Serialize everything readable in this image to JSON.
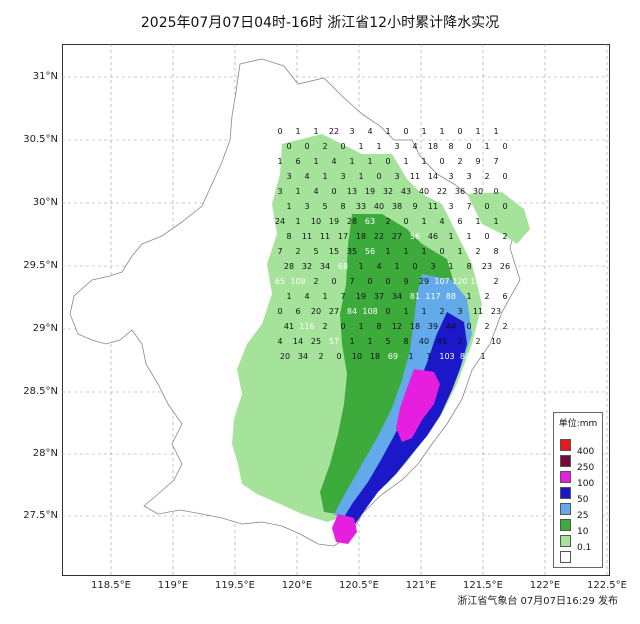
{
  "title": "2025年07月07日04时-16时 浙江省12小时累计降水实况",
  "footer": "浙江省气象台 07月07日16:29 发布",
  "lat_labels": [
    "31°N",
    "30.5°N",
    "30°N",
    "29.5°N",
    "29°N",
    "28.5°N",
    "28°N",
    "27.5°N"
  ],
  "lon_labels": [
    "118.5°E",
    "119°E",
    "119.5°E",
    "120°E",
    "120.5°E",
    "121°E",
    "121.5°E",
    "122°E",
    "122.5°E"
  ],
  "legend": {
    "title": "单位:mm",
    "items": [
      {
        "label": "400",
        "color": "#e8191a"
      },
      {
        "label": "250",
        "color": "#7a0a3c"
      },
      {
        "label": "100",
        "color": "#e51ee0"
      },
      {
        "label": "50",
        "color": "#1a18c8"
      },
      {
        "label": "25",
        "color": "#62aaea"
      },
      {
        "label": "10",
        "color": "#3cab3c"
      },
      {
        "label": "0.1",
        "color": "#a6e39a"
      },
      {
        "label": "",
        "color": "#ffffff"
      }
    ]
  },
  "station_values": [
    "0",
    "1",
    "1",
    "22",
    "3",
    "4",
    "1",
    "0",
    "1",
    "1",
    "0",
    "1",
    "1",
    "0",
    "0",
    "2",
    "0",
    "1",
    "1",
    "3",
    "4",
    "18",
    "8",
    "0",
    "1",
    "0",
    "1",
    "6",
    "1",
    "4",
    "1",
    "1",
    "0",
    "1",
    "1",
    "0",
    "2",
    "9",
    "7",
    "3",
    "4",
    "1",
    "3",
    "1",
    "0",
    "3",
    "11",
    "14",
    "3",
    "3",
    "2",
    "0",
    "3",
    "1",
    "4",
    "0",
    "13",
    "19",
    "32",
    "43",
    "40",
    "22",
    "36",
    "30",
    "0",
    "1",
    "3",
    "5",
    "8",
    "33",
    "40",
    "38",
    "9",
    "11",
    "3",
    "7",
    "0",
    "0",
    "24",
    "1",
    "10",
    "19",
    "28",
    "63",
    "2",
    "0",
    "1",
    "4",
    "6",
    "1",
    "1",
    "8",
    "11",
    "11",
    "17",
    "18",
    "22",
    "27",
    "56",
    "46",
    "1",
    "1",
    "0",
    "2",
    "7",
    "2",
    "5",
    "15",
    "35",
    "56",
    "1",
    "1",
    "1",
    "0",
    "1",
    "2",
    "8",
    "28",
    "32",
    "34",
    "68",
    "1",
    "4",
    "1",
    "0",
    "3",
    "1",
    "8",
    "23",
    "26",
    "65",
    "109",
    "2",
    "0",
    "7",
    "0",
    "0",
    "9",
    "29",
    "107",
    "120",
    "104",
    "2",
    "1",
    "4",
    "1",
    "7",
    "19",
    "37",
    "34",
    "81",
    "117",
    "88",
    "1",
    "2",
    "6",
    "0",
    "6",
    "20",
    "27",
    "84",
    "108",
    "0",
    "1",
    "1",
    "2",
    "3",
    "11",
    "23",
    "41",
    "116",
    "2",
    "0",
    "1",
    "8",
    "12",
    "18",
    "39",
    "44",
    "0",
    "2",
    "2",
    "4",
    "14",
    "25",
    "57",
    "1",
    "1",
    "5",
    "8",
    "40",
    "45",
    "2",
    "2",
    "10",
    "20",
    "34",
    "2",
    "0",
    "10",
    "18",
    "69",
    "1",
    "1",
    "103",
    "84",
    "1"
  ],
  "legend_colors_meaning": "rainfall classes"
}
